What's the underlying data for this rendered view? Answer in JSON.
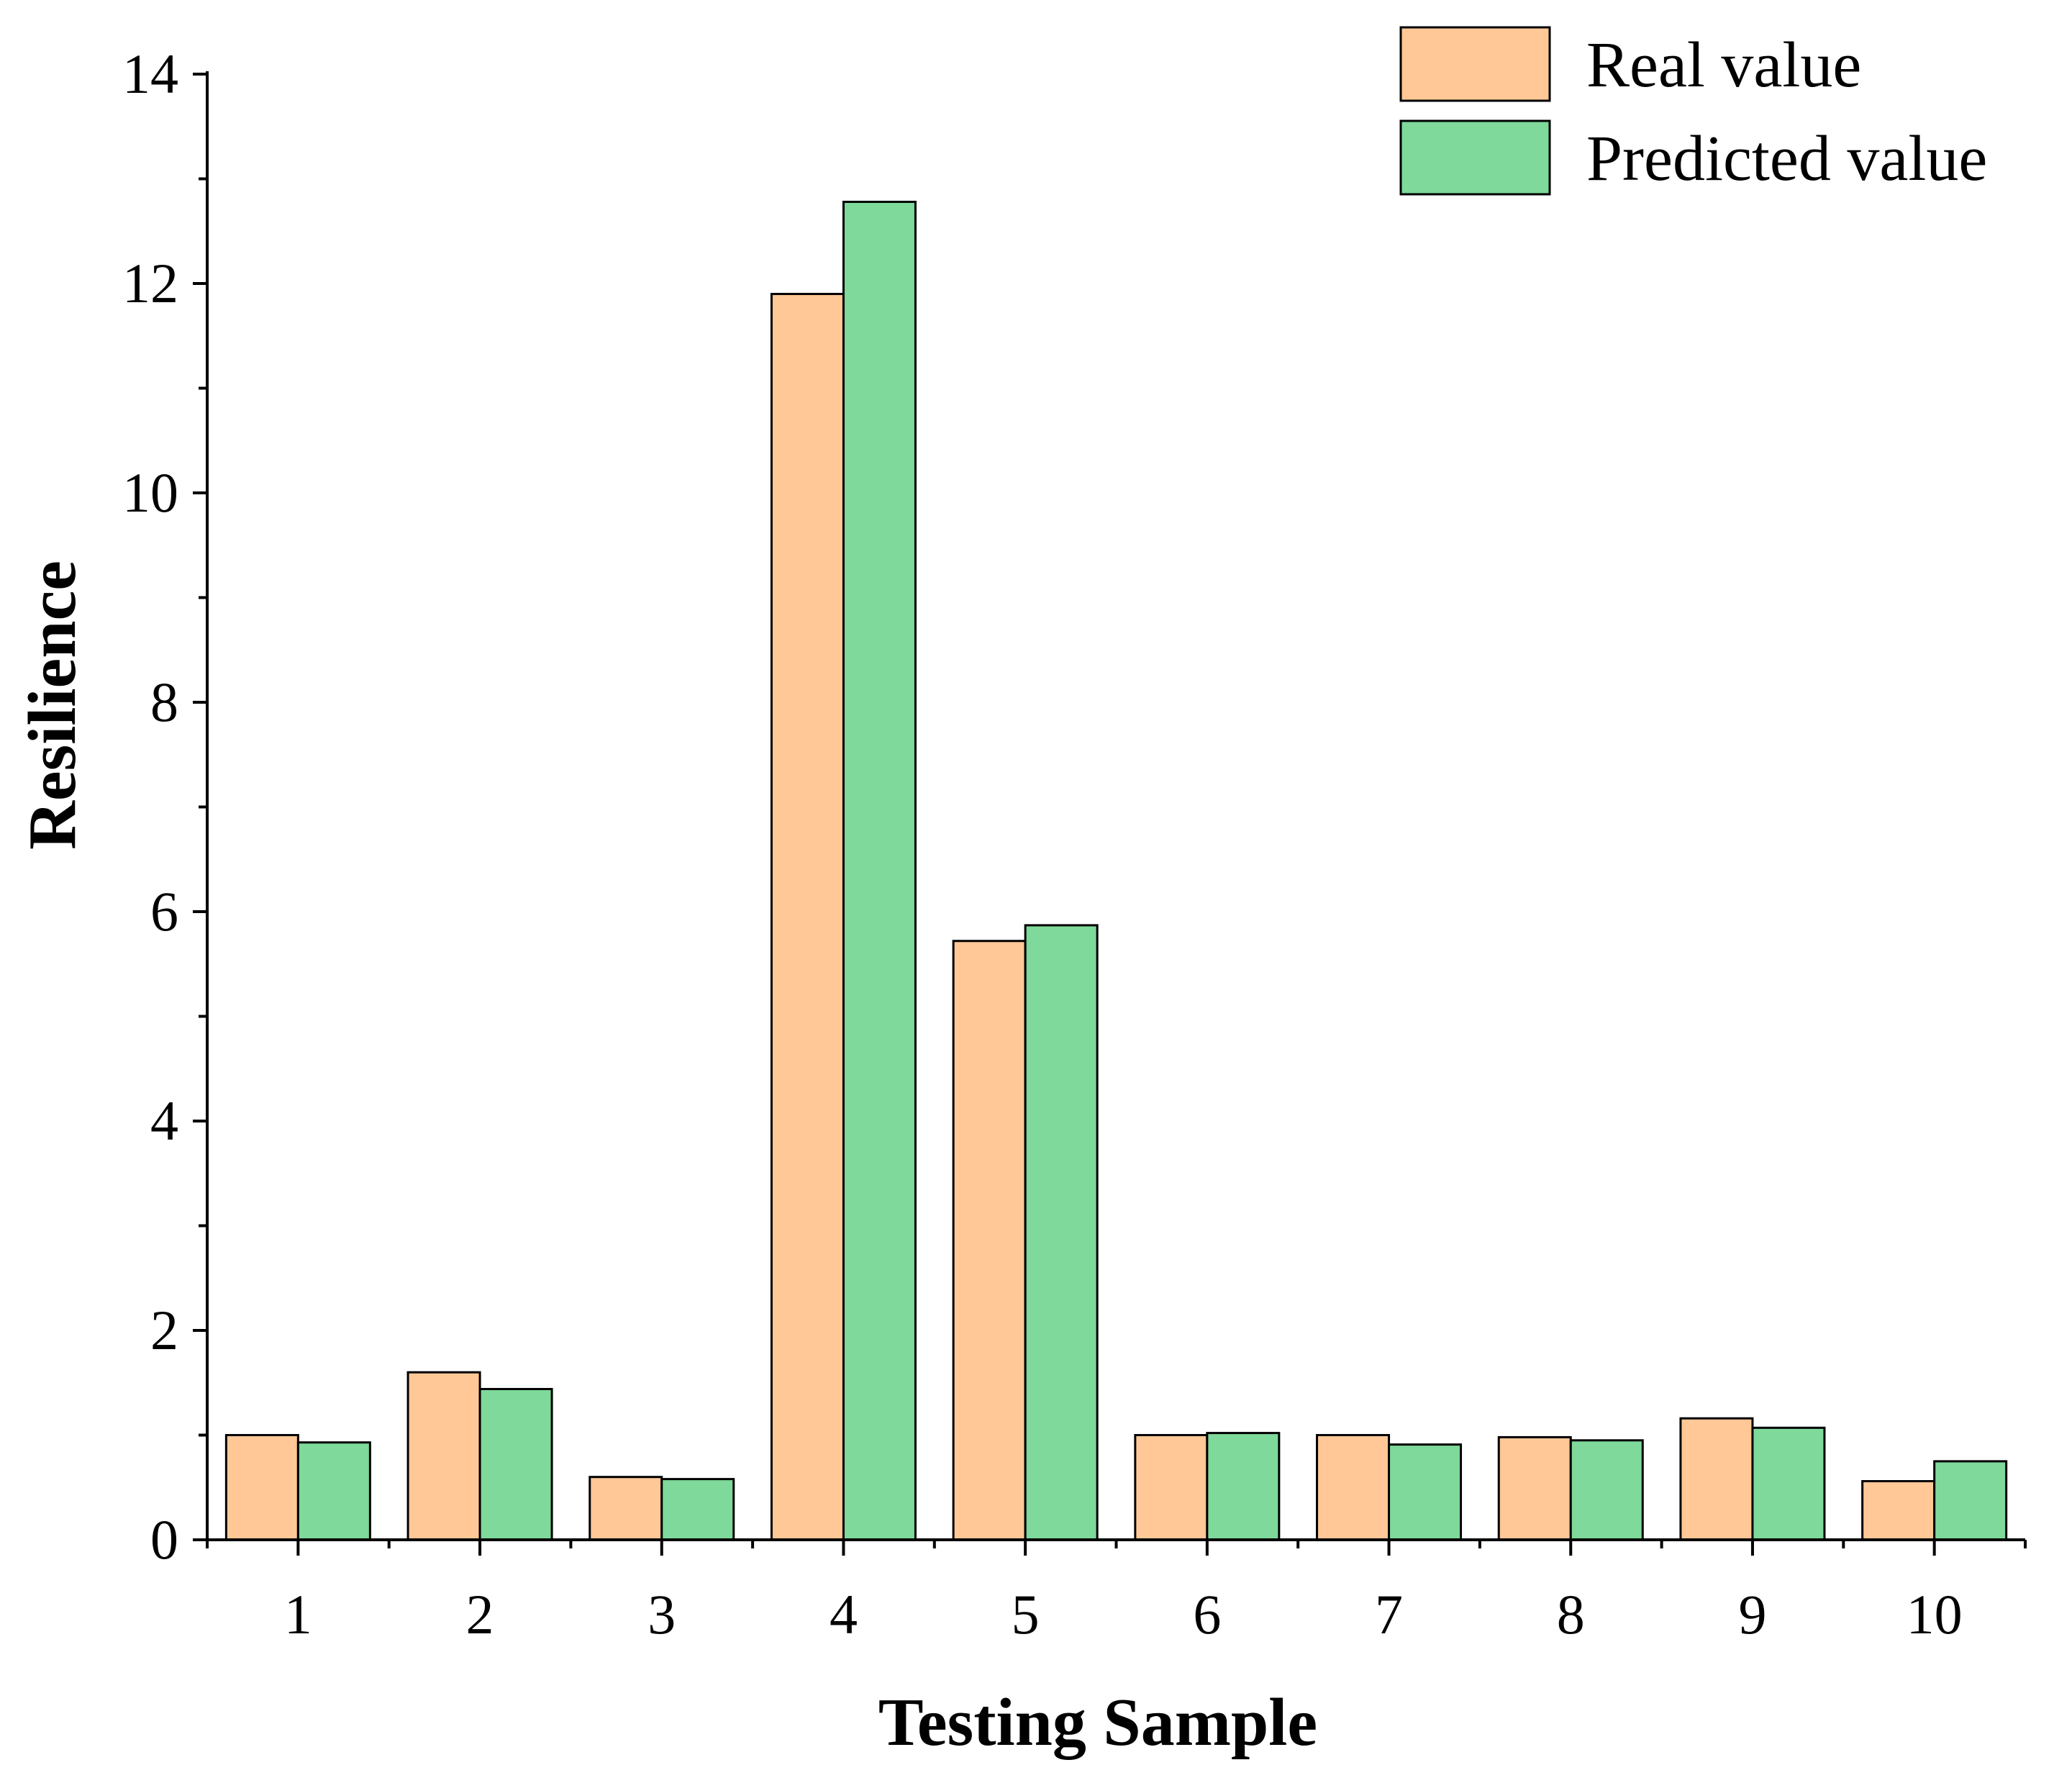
{
  "chart_data": {
    "type": "bar",
    "categories": [
      "1",
      "2",
      "3",
      "4",
      "5",
      "6",
      "7",
      "8",
      "9",
      "10"
    ],
    "series": [
      {
        "name": "Real value",
        "color": "#FFC896",
        "values": [
          1.0,
          1.6,
          0.6,
          11.9,
          5.72,
          1.0,
          1.0,
          0.98,
          1.16,
          0.56
        ]
      },
      {
        "name": "Predicted value",
        "color": "#7ED99A",
        "values": [
          0.93,
          1.44,
          0.58,
          12.78,
          5.87,
          1.02,
          0.91,
          0.95,
          1.07,
          0.75
        ]
      }
    ],
    "xlabel": "Testing Sample",
    "ylabel": "Resilience",
    "ylim": [
      0,
      14
    ],
    "yticks": [
      0,
      2,
      4,
      6,
      8,
      10,
      12,
      14
    ],
    "legend": "top-right",
    "grid": false
  }
}
